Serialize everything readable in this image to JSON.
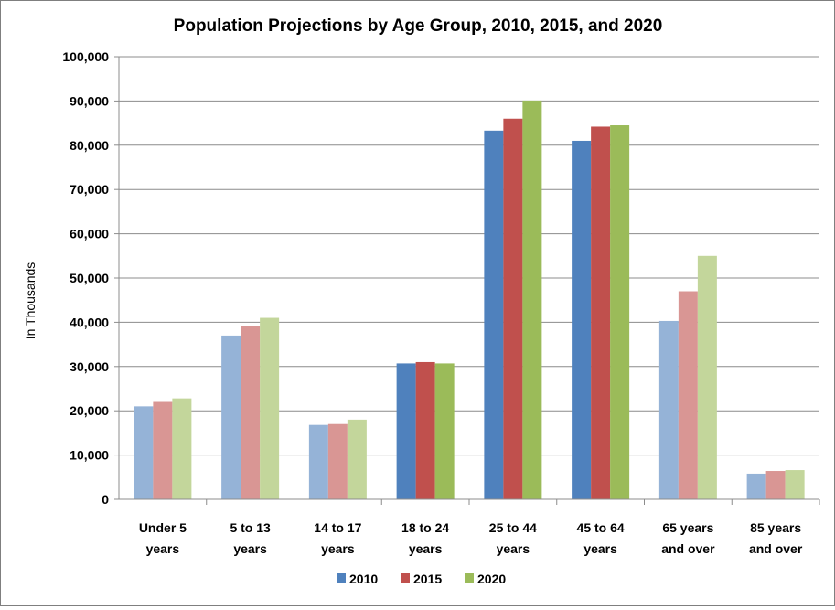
{
  "chart_data": {
    "type": "bar",
    "title": "Population Projections by Age Group, 2010, 2015, and 2020",
    "xlabel": "",
    "ylabel": "In Thousands",
    "ylim": [
      0,
      100000
    ],
    "yticks": [
      0,
      10000,
      20000,
      30000,
      40000,
      50000,
      60000,
      70000,
      80000,
      90000,
      100000
    ],
    "ytick_labels": [
      "0",
      "10,000",
      "20,000",
      "30,000",
      "40,000",
      "50,000",
      "60,000",
      "70,000",
      "80,000",
      "90,000",
      "100,000"
    ],
    "grid": true,
    "legend_position": "bottom",
    "categories": [
      [
        "Under 5",
        "years"
      ],
      [
        "5 to 13",
        "years"
      ],
      [
        "14 to 17",
        "years"
      ],
      [
        "18 to 24",
        "years"
      ],
      [
        "25 to 44",
        "years"
      ],
      [
        "45 to 64",
        "years"
      ],
      [
        "65 years",
        "and over"
      ],
      [
        "85 years",
        "and over"
      ]
    ],
    "highlighted_categories": [
      3,
      4,
      5
    ],
    "series": [
      {
        "name": "2010",
        "color": "#4F81BD",
        "light_color": "#95B3D7",
        "values": [
          21000,
          37000,
          16800,
          30700,
          83300,
          81000,
          40300,
          5800
        ]
      },
      {
        "name": "2015",
        "color": "#C0504D",
        "light_color": "#D99694",
        "values": [
          22000,
          39200,
          17000,
          31000,
          86000,
          84200,
          47000,
          6400
        ]
      },
      {
        "name": "2020",
        "color": "#9BBB59",
        "light_color": "#C3D69B",
        "values": [
          22800,
          41000,
          18000,
          30700,
          90100,
          84500,
          55000,
          6600
        ]
      }
    ]
  }
}
